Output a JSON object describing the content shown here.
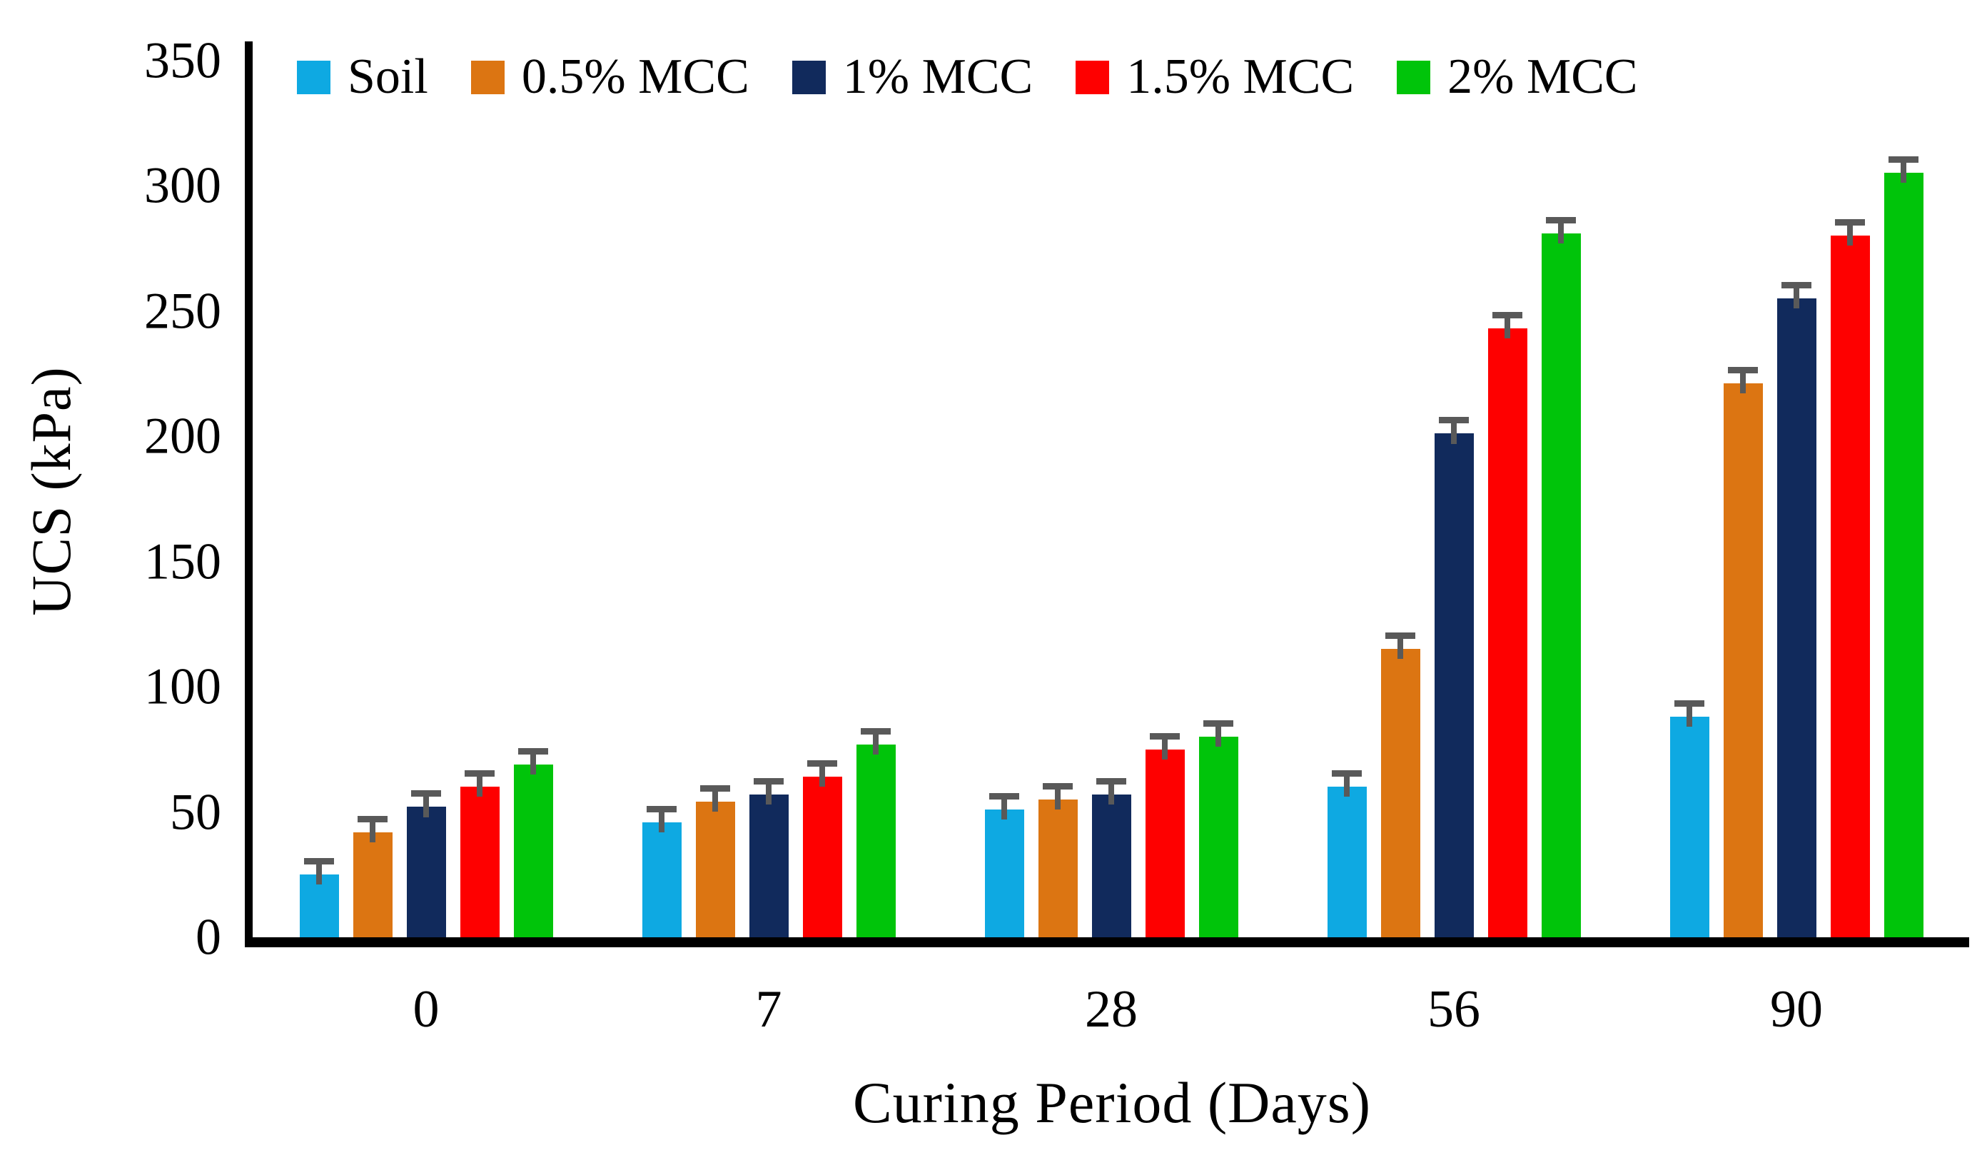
{
  "chart_data": {
    "type": "bar",
    "title": "",
    "xlabel": "Curing Period (Days)",
    "ylabel": "UCS (kPa)",
    "ylim": [
      0,
      350
    ],
    "yticks": [
      0,
      50,
      100,
      150,
      200,
      250,
      300,
      350
    ],
    "categories": [
      "0",
      "7",
      "28",
      "56",
      "90"
    ],
    "series": [
      {
        "name": "Soil",
        "color": "#0EA9E2",
        "values": [
          25,
          46,
          51,
          60,
          88
        ]
      },
      {
        "name": "0.5% MCC",
        "color": "#DC7512",
        "values": [
          42,
          54,
          55,
          115,
          221
        ]
      },
      {
        "name": "1% MCC",
        "color": "#112A5C",
        "values": [
          52,
          57,
          57,
          201,
          255
        ]
      },
      {
        "name": "1.5% MCC",
        "color": "#FE0000",
        "values": [
          60,
          64,
          75,
          243,
          280
        ]
      },
      {
        "name": "2% MCC",
        "color": "#00C40A",
        "values": [
          69,
          77,
          80,
          281,
          305
        ]
      }
    ],
    "error_bars": {
      "visible": true,
      "approx_magnitude_kpa": 4,
      "color": "#595959"
    },
    "legend_position": "top",
    "grid": false,
    "axis_color": "#000000",
    "background_color": "#FFFFFF"
  }
}
